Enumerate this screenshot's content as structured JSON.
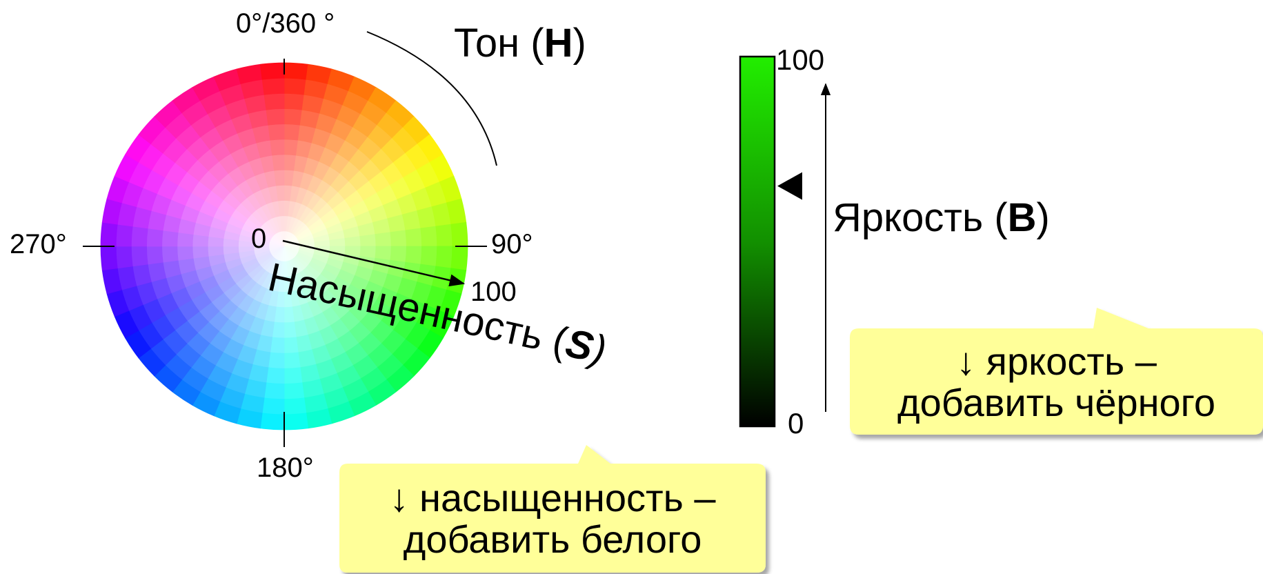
{
  "hue_wheel": {
    "label_top": "0°/360 °",
    "label_right": "90°",
    "label_bottom": "180°",
    "label_left": "270°",
    "center_label": "0",
    "radius_end_label": "100"
  },
  "hue_title": {
    "prefix": "Тон (",
    "letter": "H",
    "suffix": ")"
  },
  "saturation_title": {
    "prefix": "Насыщенность (",
    "letter": "S",
    "suffix": ")"
  },
  "brightness_bar": {
    "top_label": "100",
    "bottom_label": "0",
    "colors": {
      "top": "#22ee00",
      "bottom": "#000000"
    },
    "marker_level": 0.65
  },
  "brightness_title": {
    "prefix": "Яркость (",
    "letter": "B",
    "suffix": ")"
  },
  "callout_saturation": {
    "line1": "↓ насыщенность –",
    "line2": "добавить белого"
  },
  "callout_brightness": {
    "line1": "↓ яркость –",
    "line2": "добавить чёрного"
  },
  "colors": {
    "callout_fill": "#ffff99"
  }
}
